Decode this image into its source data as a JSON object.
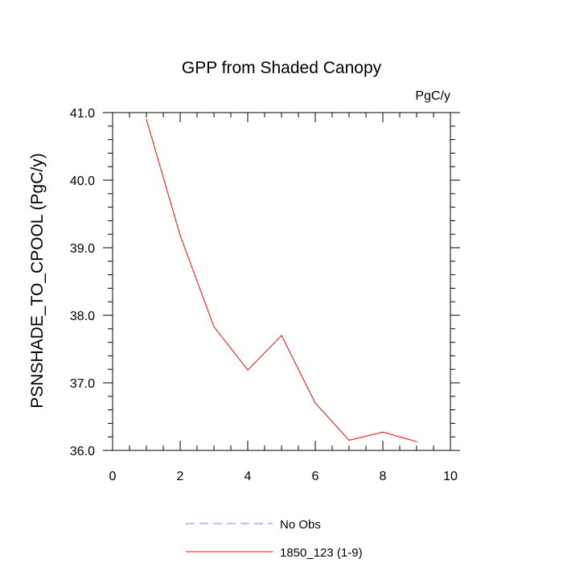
{
  "chart_data": {
    "type": "line",
    "title": "GPP from Shaded Canopy",
    "units_label": "PgC/y",
    "xlabel": "",
    "ylabel": "PSNSHADE_TO_CPOOL  (PgC/y)",
    "xlim": [
      0,
      10
    ],
    "ylim": [
      36.0,
      41.0
    ],
    "x_ticks": [
      0,
      2,
      4,
      6,
      8,
      10
    ],
    "x_tick_labels": [
      "0",
      "2",
      "4",
      "6",
      "8",
      "10"
    ],
    "y_ticks": [
      36.0,
      37.0,
      38.0,
      39.0,
      40.0,
      41.0
    ],
    "y_tick_labels": [
      "36.0",
      "37.0",
      "38.0",
      "39.0",
      "40.0",
      "41.0"
    ],
    "grid": false,
    "legend_position": "bottom",
    "series": [
      {
        "name": "1850_123 (1-9)",
        "color": "#ff0000",
        "style": "solid",
        "x": [
          1,
          2,
          3,
          4,
          5,
          6,
          7,
          8,
          9
        ],
        "y": [
          40.9,
          39.18,
          37.83,
          37.19,
          37.7,
          36.7,
          36.15,
          36.27,
          36.13
        ]
      }
    ],
    "legend": [
      {
        "label": "No Obs",
        "color": "#8080ff",
        "style": "dashed"
      },
      {
        "label": "1850_123 (1-9)",
        "color": "#ff0000",
        "style": "solid"
      }
    ]
  }
}
